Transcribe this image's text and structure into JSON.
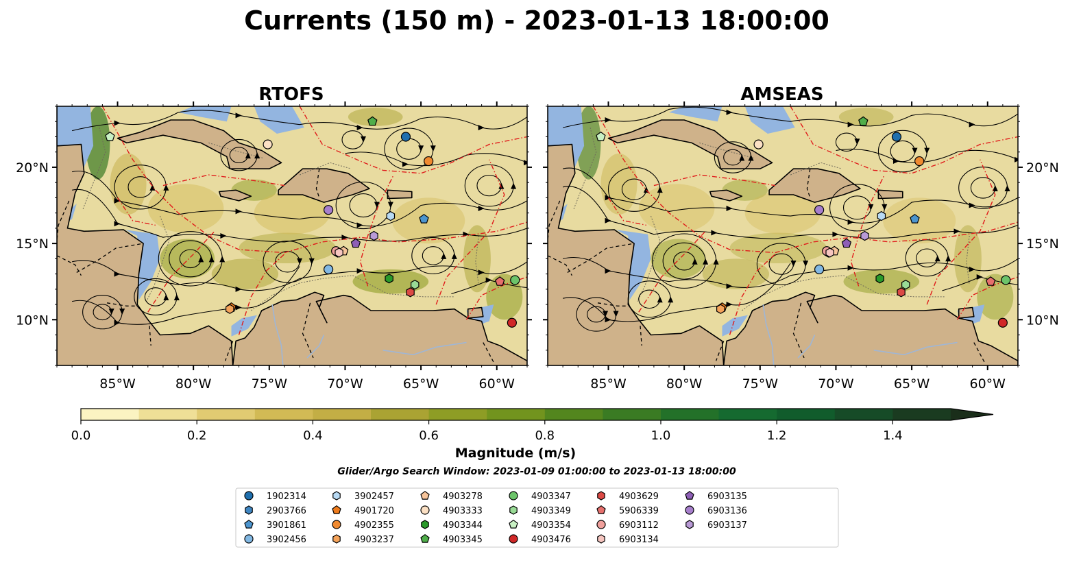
{
  "figure": {
    "title": "Currents (150 m) - 2023-01-13 18:00:00",
    "search_window": "Glider/Argo Search Window: 2023-01-09 01:00:00 to 2023-01-13 18:00:00"
  },
  "chart_data": {
    "type": "map",
    "panels": [
      {
        "title": "RTOFS",
        "lat_ticks_side": "left"
      },
      {
        "title": "AMSEAS",
        "lat_ticks_side": "right"
      }
    ],
    "lon_range": [
      -89,
      -58
    ],
    "lat_range": [
      7,
      24
    ],
    "lon_ticks": [
      {
        "value": -85,
        "label": "85°W"
      },
      {
        "value": -80,
        "label": "80°W"
      },
      {
        "value": -75,
        "label": "75°W"
      },
      {
        "value": -70,
        "label": "70°W"
      },
      {
        "value": -65,
        "label": "65°W"
      },
      {
        "value": -60,
        "label": "60°W"
      }
    ],
    "lat_ticks": [
      {
        "value": 10,
        "label": "10°N"
      },
      {
        "value": 15,
        "label": "15°N"
      },
      {
        "value": 20,
        "label": "20°N"
      }
    ],
    "colorbar": {
      "label": "Magnitude (m/s)",
      "min": 0.0,
      "max": 1.5,
      "extend": "max",
      "levels": [
        0.0,
        0.1,
        0.2,
        0.3,
        0.4,
        0.5,
        0.6,
        0.7,
        0.8,
        0.9,
        1.0,
        1.1,
        1.2,
        1.3,
        1.4,
        1.5
      ],
      "colors": [
        "#fbf3c2",
        "#efdf97",
        "#e1cb72",
        "#d2ba55",
        "#c3ae45",
        "#aaa333",
        "#8e9d25",
        "#72941e",
        "#53861e",
        "#3a7b23",
        "#237129",
        "#156a30",
        "#115c2c",
        "#164b27",
        "#1a3b20"
      ],
      "over_color": "#1a2e1a",
      "ticks": [
        {
          "value": 0.0,
          "label": "0.0"
        },
        {
          "value": 0.2,
          "label": "0.2"
        },
        {
          "value": 0.4,
          "label": "0.4"
        },
        {
          "value": 0.6,
          "label": "0.6"
        },
        {
          "value": 0.8,
          "label": "0.8"
        },
        {
          "value": 1.0,
          "label": "1.0"
        },
        {
          "value": 1.2,
          "label": "1.2"
        },
        {
          "value": 1.4,
          "label": "1.4"
        }
      ]
    },
    "map_colors": {
      "ocean": "#e8dba0",
      "land": "#cfb28a",
      "shelf": "#93b5e0"
    },
    "platforms": [
      {
        "id": "1902314",
        "lon": -66.0,
        "lat": 22.0,
        "color": "#1f6fae",
        "marker": "circle"
      },
      {
        "id": "2903766",
        "lon": -70.5,
        "lat": 14.4,
        "color": "#3f86c2",
        "marker": "hexagon"
      },
      {
        "id": "3901861",
        "lon": -64.8,
        "lat": 16.6,
        "color": "#4c95cf",
        "marker": "pentagon"
      },
      {
        "id": "3902456",
        "lon": -71.1,
        "lat": 13.3,
        "color": "#82b8e3",
        "marker": "circle"
      },
      {
        "id": "3902457",
        "lon": -67.0,
        "lat": 16.8,
        "color": "#b8daf4",
        "marker": "hexagon"
      },
      {
        "id": "4901720",
        "lon": -77.5,
        "lat": 10.8,
        "color": "#ee7b1c",
        "marker": "pentagon"
      },
      {
        "id": "4902355",
        "lon": -64.5,
        "lat": 20.4,
        "color": "#f08a30",
        "marker": "circle"
      },
      {
        "id": "4903237",
        "lon": -77.6,
        "lat": 10.7,
        "color": "#f5a35a",
        "marker": "hexagon"
      },
      {
        "id": "4903278",
        "lon": -70.1,
        "lat": 14.5,
        "color": "#f7c49a",
        "marker": "pentagon"
      },
      {
        "id": "4903333",
        "lon": -75.1,
        "lat": 21.5,
        "color": "#fbe0c4",
        "marker": "circle"
      },
      {
        "id": "4903344",
        "lon": -67.1,
        "lat": 12.7,
        "color": "#2a9a2a",
        "marker": "hexagon"
      },
      {
        "id": "4903345",
        "lon": -68.2,
        "lat": 23.0,
        "color": "#4fae4a",
        "marker": "pentagon"
      },
      {
        "id": "4903347",
        "lon": -58.8,
        "lat": 12.6,
        "color": "#6cc46a",
        "marker": "circle"
      },
      {
        "id": "4903349",
        "lon": -65.4,
        "lat": 12.3,
        "color": "#99db96",
        "marker": "hexagon"
      },
      {
        "id": "4903354",
        "lon": -85.5,
        "lat": 22.0,
        "color": "#c9f1c4",
        "marker": "pentagon"
      },
      {
        "id": "4903476",
        "lon": -59.0,
        "lat": 9.8,
        "color": "#d02727",
        "marker": "circle"
      },
      {
        "id": "4903629",
        "lon": -65.7,
        "lat": 11.8,
        "color": "#dc4a45",
        "marker": "hexagon"
      },
      {
        "id": "5906339",
        "lon": -59.8,
        "lat": 12.5,
        "color": "#e6706d",
        "marker": "pentagon"
      },
      {
        "id": "6903112",
        "lon": -70.6,
        "lat": 14.5,
        "color": "#f0a09c",
        "marker": "circle"
      },
      {
        "id": "6903134",
        "lon": -70.4,
        "lat": 14.4,
        "color": "#f6c6c0",
        "marker": "hexagon"
      },
      {
        "id": "6903135",
        "lon": -69.3,
        "lat": 15.0,
        "color": "#8e5fb6",
        "marker": "pentagon"
      },
      {
        "id": "6903136",
        "lon": -71.1,
        "lat": 17.2,
        "color": "#a77fcc",
        "marker": "circle"
      },
      {
        "id": "6903137",
        "lon": -68.1,
        "lat": 15.5,
        "color": "#b99ad6",
        "marker": "hexagon"
      }
    ]
  }
}
